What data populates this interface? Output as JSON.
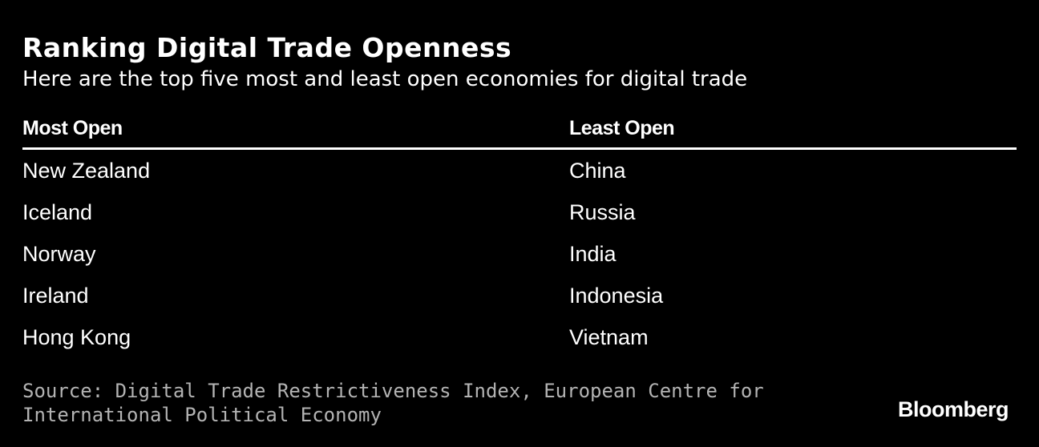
{
  "header": {
    "title": "Ranking Digital Trade Openness",
    "subtitle": "Here are the top five most and least open economies for digital trade"
  },
  "table": {
    "columns": [
      "Most Open",
      "Least Open"
    ],
    "rows": [
      [
        "New Zealand",
        "China"
      ],
      [
        "Iceland",
        "Russia"
      ],
      [
        "Norway",
        "India"
      ],
      [
        "Ireland",
        "Indonesia"
      ],
      [
        "Hong Kong",
        "Vietnam"
      ]
    ]
  },
  "footer": {
    "source": "Source: Digital Trade Restrictiveness Index, European Centre for International Political Economy",
    "brand": "Bloomberg"
  },
  "colors": {
    "background": "#000000",
    "text": "#ffffff",
    "source_text": "#b3b3b3"
  }
}
